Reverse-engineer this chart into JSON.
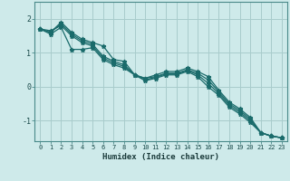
{
  "xlabel": "Humidex (Indice chaleur)",
  "background_color": "#ceeaea",
  "line_color": "#1a6b6b",
  "grid_color": "#a8cccc",
  "xlim": [
    -0.5,
    23.5
  ],
  "ylim": [
    -1.6,
    2.5
  ],
  "yticks": [
    -1,
    0,
    1,
    2
  ],
  "xticks": [
    0,
    1,
    2,
    3,
    4,
    5,
    6,
    7,
    8,
    9,
    10,
    11,
    12,
    13,
    14,
    15,
    16,
    17,
    18,
    19,
    20,
    21,
    22,
    23
  ],
  "series": [
    [
      1.7,
      1.6,
      1.9,
      1.6,
      1.4,
      1.3,
      1.2,
      0.8,
      0.75,
      0.35,
      0.25,
      0.35,
      0.45,
      0.45,
      0.55,
      0.45,
      0.3,
      -0.1,
      -0.45,
      -0.65,
      -0.9,
      -1.35,
      -1.45,
      -1.5
    ],
    [
      1.7,
      1.6,
      1.85,
      1.55,
      1.35,
      1.25,
      0.9,
      0.75,
      0.65,
      0.35,
      0.25,
      0.3,
      0.4,
      0.4,
      0.5,
      0.4,
      0.2,
      -0.15,
      -0.5,
      -0.7,
      -0.95,
      -1.35,
      -1.45,
      -1.5
    ],
    [
      1.7,
      1.65,
      1.8,
      1.5,
      1.3,
      1.2,
      0.85,
      0.7,
      0.6,
      0.35,
      0.2,
      0.28,
      0.38,
      0.38,
      0.48,
      0.35,
      0.1,
      -0.2,
      -0.55,
      -0.75,
      -1.0,
      -1.35,
      -1.45,
      -1.5
    ],
    [
      1.7,
      1.55,
      1.75,
      1.1,
      1.1,
      1.15,
      0.8,
      0.65,
      0.55,
      0.35,
      0.18,
      0.25,
      0.35,
      0.35,
      0.45,
      0.3,
      0.0,
      -0.25,
      -0.6,
      -0.8,
      -1.05,
      -1.35,
      -1.45,
      -1.5
    ]
  ]
}
